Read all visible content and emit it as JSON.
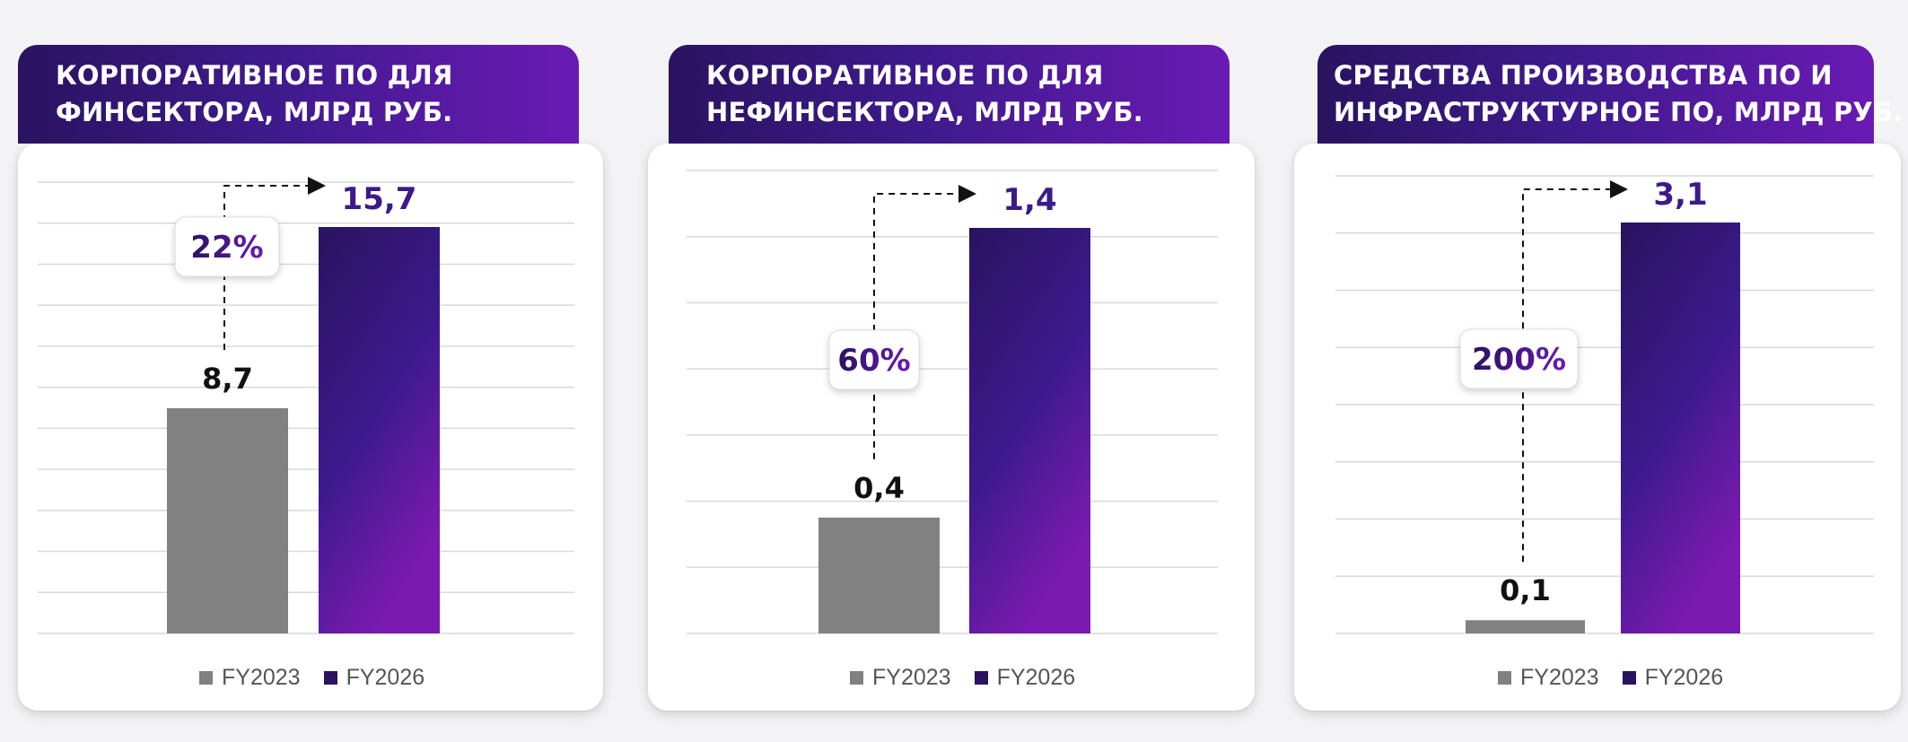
{
  "colors": {
    "fy2023": "#818181",
    "fy2026_top": "#2a1360",
    "fy2026_bottom": "#7a1ab0",
    "accent_text": "#3b1a8a"
  },
  "legend": {
    "fy2023": "FY2023",
    "fy2026": "FY2026"
  },
  "panels": [
    {
      "title_line1": "КОРПОРАТИВНОЕ ПО ДЛЯ",
      "title_line2": "ФИНСЕКТОРА, МЛРД РУБ.",
      "growth_label": "22%",
      "value_labels": [
        "8,7",
        "15,7"
      ]
    },
    {
      "title_line1": "КОРПОРАТИВНОЕ ПО ДЛЯ",
      "title_line2": "НЕФИНСЕКТОРА, МЛРД РУБ.",
      "growth_label": "60%",
      "value_labels": [
        "0,4",
        "1,4"
      ]
    },
    {
      "title_line1": "СРЕДСТВА ПРОИЗВОДСТВА ПО И",
      "title_line2": "ИНФРАСТРУКТУРНОЕ ПО, МЛРД РУБ.",
      "growth_label": "200%",
      "value_labels": [
        "0,1",
        "3,1"
      ]
    }
  ],
  "chart_data": [
    {
      "type": "bar",
      "title": "КОРПОРАТИВНОЕ ПО ДЛЯ ФИНСЕКТОРА, МЛРД РУБ.",
      "categories": [
        "FY2023",
        "FY2026"
      ],
      "values": [
        8.7,
        15.7
      ],
      "annotation": "22%",
      "grid": true,
      "legend": "bottom"
    },
    {
      "type": "bar",
      "title": "КОРПОРАТИВНОЕ ПО ДЛЯ НЕФИНСЕКТОРА, МЛРД РУБ.",
      "categories": [
        "FY2023",
        "FY2026"
      ],
      "values": [
        0.4,
        1.4
      ],
      "annotation": "60%",
      "grid": true,
      "legend": "bottom"
    },
    {
      "type": "bar",
      "title": "СРЕДСТВА ПРОИЗВОДСТВА ПО И ИНФРАСТРУКТУРНОЕ ПО, МЛРД РУБ.",
      "categories": [
        "FY2023",
        "FY2026"
      ],
      "values": [
        0.1,
        3.1
      ],
      "annotation": "200%",
      "grid": true,
      "legend": "bottom"
    }
  ]
}
